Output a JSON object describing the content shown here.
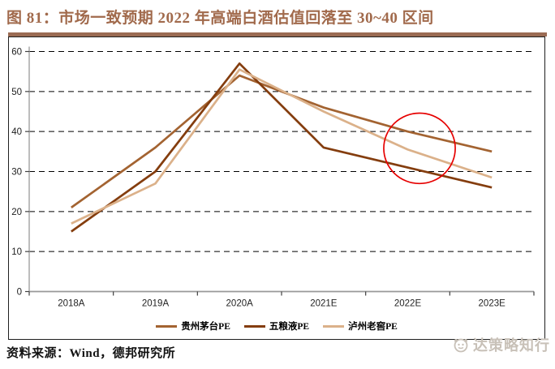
{
  "title": {
    "text": "图 81：市场一致预期 2022 年高端白酒估值回落至 30~40 区间",
    "color": "#A16A4C",
    "rule_color": "#9A6B53"
  },
  "footer": {
    "source": "资料来源：Wind，德邦研究所"
  },
  "watermark": {
    "text": "达策略知行",
    "color": "#c8c1b8"
  },
  "chart_data": {
    "type": "line",
    "title": "",
    "categories": [
      "2018A",
      "2019A",
      "2020A",
      "2021E",
      "2022E",
      "2023E"
    ],
    "series": [
      {
        "name": "贵州茅台PE",
        "color": "#A36331",
        "values": [
          21,
          36,
          54,
          46,
          40,
          35
        ]
      },
      {
        "name": "五粮液PE",
        "color": "#843D0E",
        "values": [
          15,
          30,
          57,
          36,
          31,
          26
        ]
      },
      {
        "name": "泸州老窖PE",
        "color": "#DBB18A",
        "values": [
          17,
          27,
          55.5,
          45,
          35.5,
          28.5
        ]
      }
    ],
    "xlabel": "",
    "ylabel": "",
    "ylim": [
      0,
      60
    ],
    "y_step": 10,
    "grid": "horizontal-dashed",
    "legend_position": "bottom",
    "axis_color": "#999999",
    "tick_label_color": "#1f1f1f",
    "annotation": {
      "shape": "ellipse",
      "note": "highlights consensus 2022E valuation falling to 30~40 band",
      "color": "#E60000",
      "center_category_units": 4.64,
      "center_value": 35.8,
      "rx_category_frac": 0.425,
      "ry_value": 8.8
    }
  }
}
